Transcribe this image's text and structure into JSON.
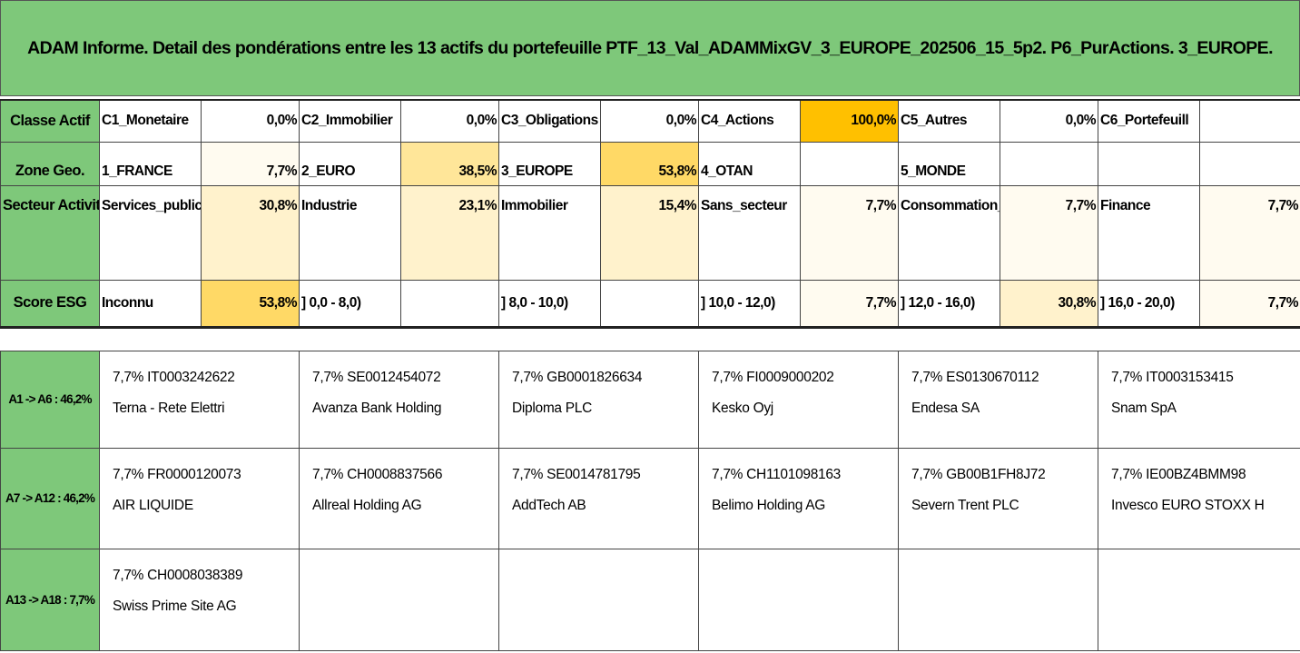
{
  "title": "ADAM Informe. Detail des pondérations entre les 13 actifs du portefeuille PTF_13_Val_ADAMMixGV_3_EUROPE_202506_15_5p2. P6_PurActions. 3_EUROPE.",
  "colors": {
    "header_green": "#7ec87a",
    "strong_orange": "#ffc000",
    "mid_yellow": "#ffd966",
    "light_yellow": "#ffe699",
    "pale_yellow": "#fff2cc",
    "very_pale": "#fffbf0"
  },
  "upper_rows": [
    {
      "header": "Classe Actif",
      "cells": [
        {
          "label": "C1_Monetaire",
          "value": "0,0%"
        },
        {
          "label": "C2_Immobilier",
          "value": "0,0%"
        },
        {
          "label": "C3_Obligations",
          "value": "0,0%"
        },
        {
          "label": "C4_Actions",
          "value": "100,0%"
        },
        {
          "label": "C5_Autres",
          "value": "0,0%"
        },
        {
          "label": "C6_Portefeuill",
          "value": ""
        }
      ]
    },
    {
      "header": "Zone Geo.",
      "cells": [
        {
          "label": "1_FRANCE",
          "value": "7,7%"
        },
        {
          "label": "2_EURO",
          "value": "38,5%"
        },
        {
          "label": "3_EUROPE",
          "value": "53,8%"
        },
        {
          "label": "4_OTAN",
          "value": ""
        },
        {
          "label": "5_MONDE",
          "value": ""
        },
        {
          "label": "",
          "value": ""
        }
      ]
    },
    {
      "header": "Secteur Activite",
      "cells": [
        {
          "label": "Services_publics",
          "value": "30,8%"
        },
        {
          "label": "Industrie",
          "value": "23,1%"
        },
        {
          "label": "Immobilier",
          "value": "15,4%"
        },
        {
          "label": "Sans_secteur",
          "value": "7,7%"
        },
        {
          "label": "Consommation_base",
          "value": "7,7%"
        },
        {
          "label": "Finance",
          "value": "7,7%"
        }
      ]
    },
    {
      "header": "Score ESG",
      "cells": [
        {
          "label": "Inconnu",
          "value": "53,8%"
        },
        {
          "label": "] 0,0 - 8,0)",
          "value": ""
        },
        {
          "label": "] 8,0 - 10,0)",
          "value": ""
        },
        {
          "label": "] 10,0 - 12,0)",
          "value": "7,7%"
        },
        {
          "label": "] 12,0 - 16,0)",
          "value": "30,8%"
        },
        {
          "label": "] 16,0 - 20,0)",
          "value": "7,7%"
        }
      ]
    }
  ],
  "asset_rows": [
    {
      "header": "A1 -> A6 : 46,2%",
      "assets": [
        {
          "weight": "7,7%",
          "isin": "IT0003242622",
          "name": "Terna - Rete Elettri"
        },
        {
          "weight": "7,7%",
          "isin": "SE0012454072",
          "name": "Avanza Bank Holding"
        },
        {
          "weight": "7,7%",
          "isin": "GB0001826634",
          "name": "Diploma PLC"
        },
        {
          "weight": "7,7%",
          "isin": "FI0009000202",
          "name": "Kesko Oyj"
        },
        {
          "weight": "7,7%",
          "isin": "ES0130670112",
          "name": "Endesa SA"
        },
        {
          "weight": "7,7%",
          "isin": "IT0003153415",
          "name": "Snam SpA"
        }
      ]
    },
    {
      "header": "A7 -> A12 : 46,2%",
      "assets": [
        {
          "weight": "7,7%",
          "isin": "FR0000120073",
          "name": "AIR LIQUIDE"
        },
        {
          "weight": "7,7%",
          "isin": "CH0008837566",
          "name": "Allreal Holding AG"
        },
        {
          "weight": "7,7%",
          "isin": "SE0014781795",
          "name": "AddTech AB"
        },
        {
          "weight": "7,7%",
          "isin": "CH1101098163",
          "name": "Belimo Holding AG"
        },
        {
          "weight": "7,7%",
          "isin": "GB00B1FH8J72",
          "name": "Severn Trent PLC"
        },
        {
          "weight": "7,7%",
          "isin": "IE00BZ4BMM98",
          "name": "Invesco EURO STOXX H"
        }
      ]
    },
    {
      "header": "A13 -> A18 : 7,7%",
      "assets": [
        {
          "weight": "7,7%",
          "isin": "CH0008038389",
          "name": "Swiss Prime Site AG"
        },
        {
          "weight": "",
          "isin": "",
          "name": ""
        },
        {
          "weight": "",
          "isin": "",
          "name": ""
        },
        {
          "weight": "",
          "isin": "",
          "name": ""
        },
        {
          "weight": "",
          "isin": "",
          "name": ""
        },
        {
          "weight": "",
          "isin": "",
          "name": ""
        }
      ]
    }
  ]
}
